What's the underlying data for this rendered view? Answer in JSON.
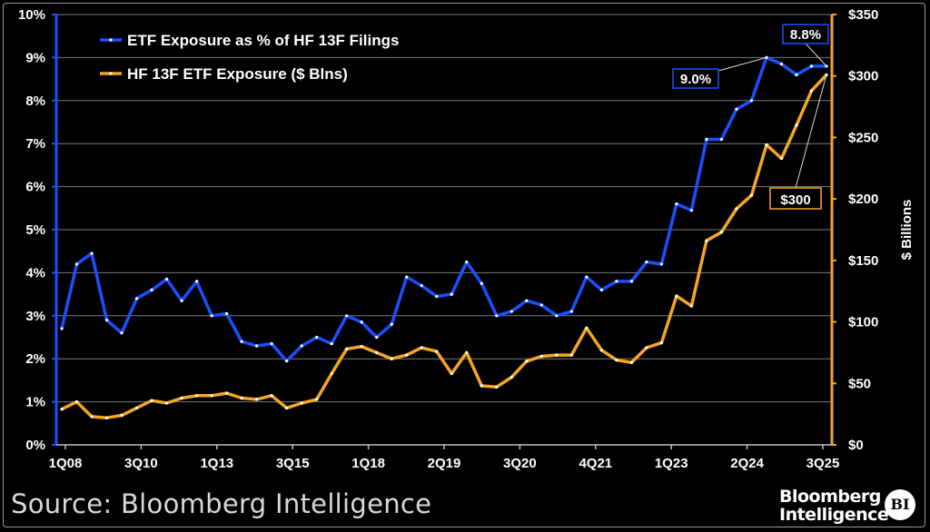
{
  "source": "Source: Bloomberg Intelligence",
  "brand": {
    "line1": "Bloomberg",
    "line2": "Intelligence",
    "logo": "BI"
  },
  "colors": {
    "pct": "#1a50ff",
    "usd": "#f5a623",
    "grid": "#7a7a7a",
    "bg": "#000000"
  },
  "chart_data": {
    "type": "line",
    "title": "",
    "xlabel": "",
    "ylabel": "",
    "y2label": "$ Billions",
    "x_tick_labels": [
      "1Q08",
      "3Q10",
      "1Q13",
      "3Q15",
      "1Q18",
      "2Q19",
      "3Q20",
      "4Q21",
      "1Q23",
      "2Q24",
      "3Q25"
    ],
    "ylim": [
      0,
      10
    ],
    "y_ticks": [
      "0%",
      "1%",
      "2%",
      "3%",
      "4%",
      "5%",
      "6%",
      "7%",
      "8%",
      "9%",
      "10%"
    ],
    "y2lim": [
      0,
      350
    ],
    "y2_ticks": [
      "$0",
      "$50",
      "$100",
      "$150",
      "$200",
      "$250",
      "$300",
      "$350"
    ],
    "grid": true,
    "legend_position": "top-left",
    "series": [
      {
        "name": "ETF Exposure as % of HF 13F Filings",
        "axis": "left",
        "values": [
          2.7,
          4.2,
          4.45,
          2.9,
          2.6,
          3.4,
          3.6,
          3.85,
          3.35,
          3.8,
          3.0,
          3.05,
          2.4,
          2.3,
          2.35,
          1.95,
          2.3,
          2.5,
          2.35,
          3.0,
          2.85,
          2.5,
          2.8,
          3.9,
          3.7,
          3.45,
          3.5,
          4.25,
          3.75,
          3.0,
          3.1,
          3.35,
          3.25,
          3.0,
          3.1,
          3.9,
          3.6,
          3.8,
          3.8,
          4.25,
          4.2,
          5.6,
          5.45,
          7.1,
          7.1,
          7.8,
          8.0,
          9.0,
          8.85,
          8.6,
          8.8,
          8.8
        ]
      },
      {
        "name": "HF 13F ETF Exposure ($ Blns)",
        "axis": "right",
        "values": [
          29,
          35,
          23,
          22,
          24,
          30,
          36,
          34,
          38,
          40,
          40,
          42,
          38,
          37,
          40,
          30,
          34,
          37,
          58,
          78,
          80,
          75,
          70,
          73,
          79,
          76,
          58,
          75,
          48,
          47,
          55,
          68,
          72,
          73,
          73,
          95,
          77,
          69,
          67,
          79,
          83,
          121,
          113,
          166,
          173,
          192,
          203,
          244,
          233,
          260,
          288,
          301
        ]
      }
    ],
    "annotations": [
      {
        "text": "9.0%",
        "series": 0,
        "index": 47
      },
      {
        "text": "8.8%",
        "series": 0,
        "index": 51
      },
      {
        "text": "$300",
        "series": 1,
        "index": 51
      }
    ]
  }
}
